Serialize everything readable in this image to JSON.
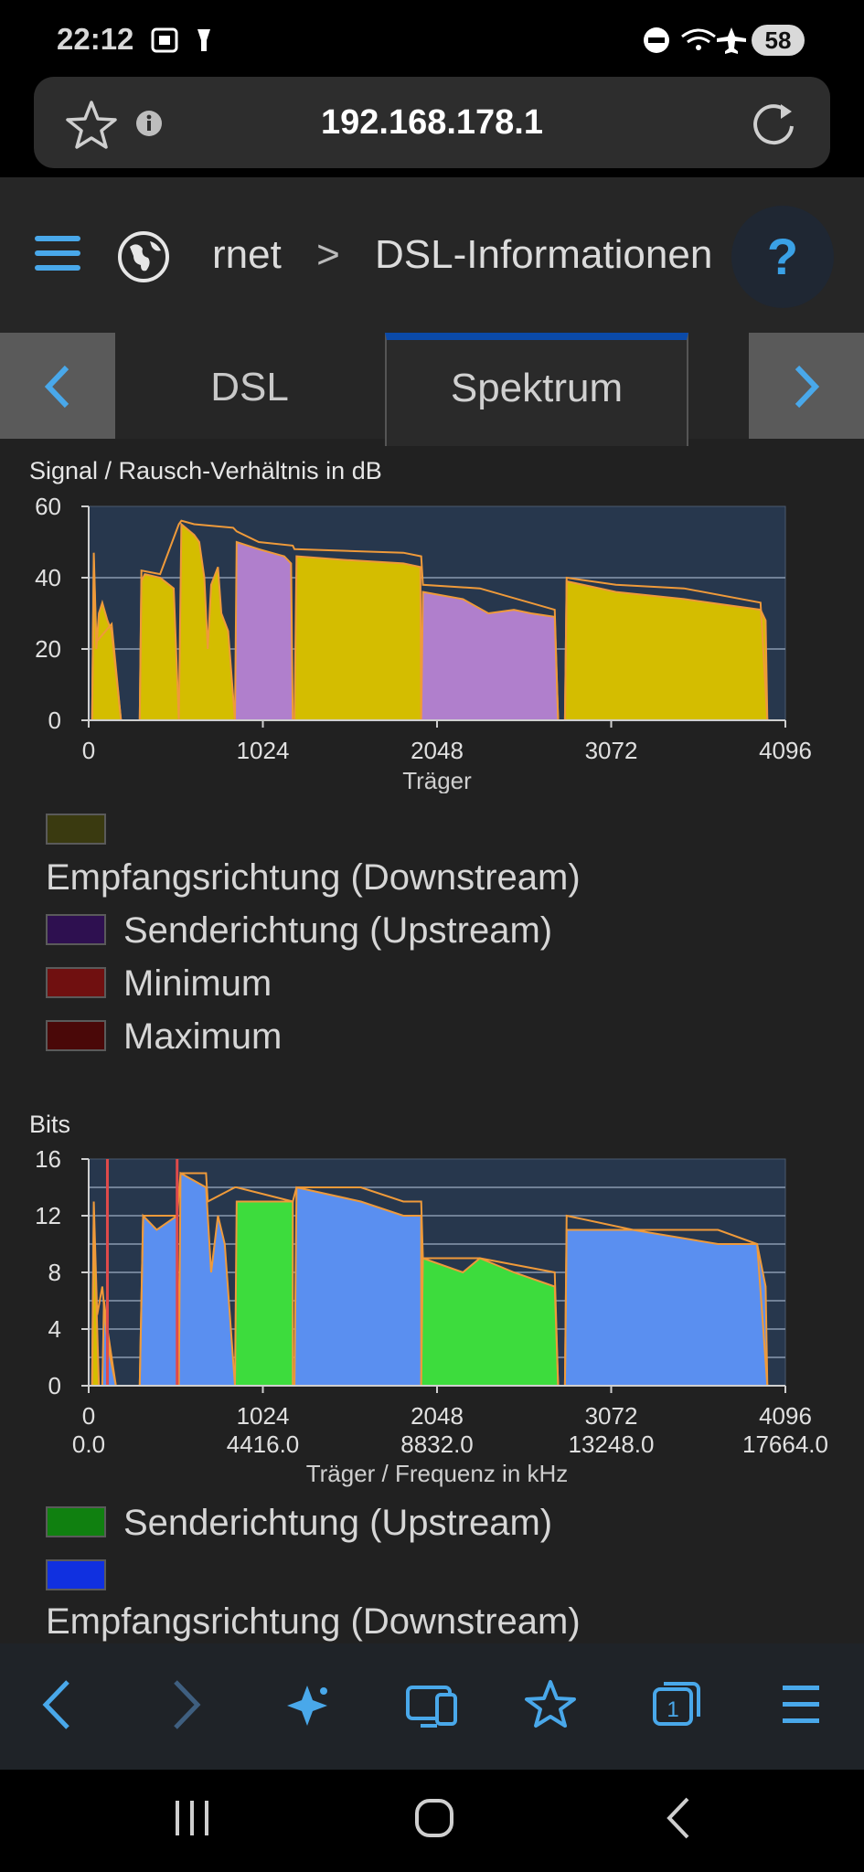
{
  "status_bar": {
    "time": "22:12",
    "battery": "58"
  },
  "browser": {
    "url": "192.168.178.1"
  },
  "nav": {
    "breadcrumb_parent": "rnet",
    "breadcrumb_separator": ">",
    "breadcrumb_current": "DSL-Informationen",
    "help": "?"
  },
  "tabs": [
    {
      "label": "DSL"
    },
    {
      "label": "Spektrum",
      "active": true
    }
  ],
  "colors": {
    "downstream_snr": "#d4bd00",
    "upstream_snr": "#b07fcc",
    "downstream_bits": "#5a8ff0",
    "upstream_bits": "#3ddc3d",
    "outline": "#ef9a3a",
    "plot_bg": "#27374d",
    "accent": "#0b4aa8"
  },
  "chart_data": [
    {
      "type": "area",
      "title": "Signal / Rausch-Verhältnis in dB",
      "xlabel": "Träger",
      "ylabel": "dB",
      "xlim": [
        0,
        4096
      ],
      "ylim": [
        0,
        60
      ],
      "xticks": [
        "0",
        "1024",
        "2048",
        "3072",
        "4096"
      ],
      "yticks": [
        "0",
        "20",
        "40",
        "60"
      ],
      "series": [
        {
          "name": "Empfangsrichtung (Downstream)",
          "segments": [
            [
              [
                20,
                0
              ],
              [
                30,
                45
              ],
              [
                45,
                20
              ],
              [
                60,
                30
              ],
              [
                80,
                33
              ],
              [
                110,
                28
              ],
              [
                135,
                25
              ],
              [
                190,
                0
              ]
            ],
            [
              [
                300,
                0
              ],
              [
                310,
                39
              ],
              [
                330,
                41
              ],
              [
                420,
                40
              ],
              [
                500,
                37
              ],
              [
                530,
                0
              ]
            ],
            [
              [
                530,
                0
              ],
              [
                545,
                55
              ],
              [
                620,
                52
              ],
              [
                650,
                50
              ],
              [
                680,
                40
              ],
              [
                700,
                20
              ],
              [
                720,
                38
              ],
              [
                760,
                43
              ],
              [
                780,
                30
              ],
              [
                820,
                25
              ],
              [
                860,
                0
              ]
            ],
            [
              [
                1210,
                0
              ],
              [
                1222,
                46
              ],
              [
                1500,
                45
              ],
              [
                1850,
                44
              ],
              [
                1950,
                43
              ],
              [
                1955,
                0
              ]
            ],
            [
              [
                2800,
                0
              ],
              [
                2810,
                39
              ],
              [
                3100,
                36
              ],
              [
                3500,
                34
              ],
              [
                3950,
                31
              ],
              [
                3980,
                28
              ],
              [
                3990,
                0
              ]
            ]
          ]
        },
        {
          "name": "Senderichtung (Upstream)",
          "segments": [
            [
              [
                860,
                0
              ],
              [
                870,
                50
              ],
              [
                1000,
                48
              ],
              [
                1150,
                46
              ],
              [
                1190,
                44
              ],
              [
                1200,
                0
              ]
            ],
            [
              [
                1955,
                0
              ],
              [
                1965,
                36
              ],
              [
                2200,
                34
              ],
              [
                2350,
                30
              ],
              [
                2500,
                31
              ],
              [
                2600,
                30
              ],
              [
                2740,
                29
              ],
              [
                2760,
                0
              ]
            ]
          ]
        }
      ],
      "minimum_line": [
        [
          20,
          0
        ],
        [
          30,
          47
        ],
        [
          45,
          22
        ],
        [
          135,
          27
        ],
        [
          190,
          0
        ],
        [
          300,
          0
        ],
        [
          310,
          42
        ],
        [
          420,
          41
        ],
        [
          530,
          55
        ],
        [
          545,
          56
        ],
        [
          620,
          55
        ],
        [
          850,
          54
        ],
        [
          870,
          53
        ],
        [
          1000,
          50
        ],
        [
          1200,
          49
        ],
        [
          1210,
          48
        ],
        [
          1850,
          47
        ],
        [
          1955,
          46
        ],
        [
          1965,
          38
        ],
        [
          2300,
          37
        ],
        [
          2740,
          31
        ],
        [
          2760,
          0
        ],
        [
          2800,
          0
        ],
        [
          2810,
          40
        ],
        [
          3100,
          38
        ],
        [
          3500,
          37
        ],
        [
          3950,
          33
        ],
        [
          3990,
          0
        ]
      ],
      "legend": [
        {
          "label": "Empfangsrichtung (Downstream)",
          "color": "#3a3a10"
        },
        {
          "label": "Senderichtung (Upstream)",
          "color": "#2e1050"
        },
        {
          "label": "Minimum",
          "color": "#701010"
        },
        {
          "label": "Maximum",
          "color": "#4a0808"
        }
      ]
    },
    {
      "type": "area",
      "title": "Bits",
      "xlabel": "Träger / Frequenz in kHz",
      "xlim": [
        0,
        4096
      ],
      "ylim": [
        0,
        16
      ],
      "xticks": [
        "0",
        "1024",
        "2048",
        "3072",
        "4096"
      ],
      "xticks_freq": [
        "0.0",
        "4416.0",
        "8832.0",
        "13248.0",
        "17664.0"
      ],
      "yticks": [
        "0",
        "4",
        "8",
        "12",
        "16"
      ],
      "series": [
        {
          "name": "Empfangsrichtung (Downstream)",
          "segments": [
            [
              [
                80,
                0
              ],
              [
                90,
                6
              ],
              [
                110,
                4
              ],
              [
                160,
                0
              ]
            ],
            [
              [
                300,
                0
              ],
              [
                320,
                12
              ],
              [
                400,
                11
              ],
              [
                520,
                12
              ],
              [
                530,
                0
              ]
            ],
            [
              [
                530,
                0
              ],
              [
                540,
                15
              ],
              [
                690,
                14
              ],
              [
                720,
                8
              ],
              [
                760,
                12
              ],
              [
                800,
                10
              ],
              [
                860,
                0
              ]
            ],
            [
              [
                1210,
                0
              ],
              [
                1222,
                14
              ],
              [
                1600,
                13
              ],
              [
                1850,
                12
              ],
              [
                1955,
                12
              ],
              [
                1955,
                0
              ]
            ],
            [
              [
                2800,
                0
              ],
              [
                2810,
                11
              ],
              [
                3200,
                11
              ],
              [
                3700,
                10
              ],
              [
                3930,
                10
              ],
              [
                3980,
                7
              ],
              [
                3990,
                0
              ]
            ]
          ]
        },
        {
          "name": "Senderichtung (Upstream)",
          "segments": [
            [
              [
                860,
                0
              ],
              [
                870,
                13
              ],
              [
                1200,
                13
              ],
              [
                1200,
                0
              ]
            ],
            [
              [
                1955,
                0
              ],
              [
                1965,
                9
              ],
              [
                2200,
                8
              ],
              [
                2300,
                9
              ],
              [
                2500,
                8
              ],
              [
                2740,
                7
              ],
              [
                2760,
                0
              ]
            ]
          ]
        },
        {
          "name": "Empfangsrichtung (Downstream) low",
          "segments": [
            [
              [
                20,
                0
              ],
              [
                30,
                12
              ],
              [
                50,
                4
              ],
              [
                60,
                0
              ]
            ]
          ]
        }
      ],
      "minimum_line": [
        [
          20,
          0
        ],
        [
          30,
          13
        ],
        [
          50,
          5
        ],
        [
          80,
          7
        ],
        [
          110,
          3
        ],
        [
          160,
          0
        ],
        [
          300,
          0
        ],
        [
          320,
          12
        ],
        [
          520,
          12
        ],
        [
          540,
          15
        ],
        [
          690,
          15
        ],
        [
          700,
          13
        ],
        [
          860,
          14
        ],
        [
          870,
          14
        ],
        [
          1200,
          13
        ],
        [
          1222,
          14
        ],
        [
          1600,
          14
        ],
        [
          1850,
          13
        ],
        [
          1955,
          13
        ],
        [
          1965,
          9
        ],
        [
          2300,
          9
        ],
        [
          2740,
          8
        ],
        [
          2760,
          0
        ],
        [
          2800,
          0
        ],
        [
          2810,
          12
        ],
        [
          3200,
          11
        ],
        [
          3700,
          11
        ],
        [
          3930,
          10
        ],
        [
          3990,
          0
        ]
      ],
      "markers_x": [
        110,
        520
      ],
      "legend": [
        {
          "label": "Senderichtung (Upstream)",
          "color": "#108010"
        },
        {
          "label": "Empfangsrichtung (Downstream)",
          "color": "#1030e0"
        }
      ]
    }
  ]
}
